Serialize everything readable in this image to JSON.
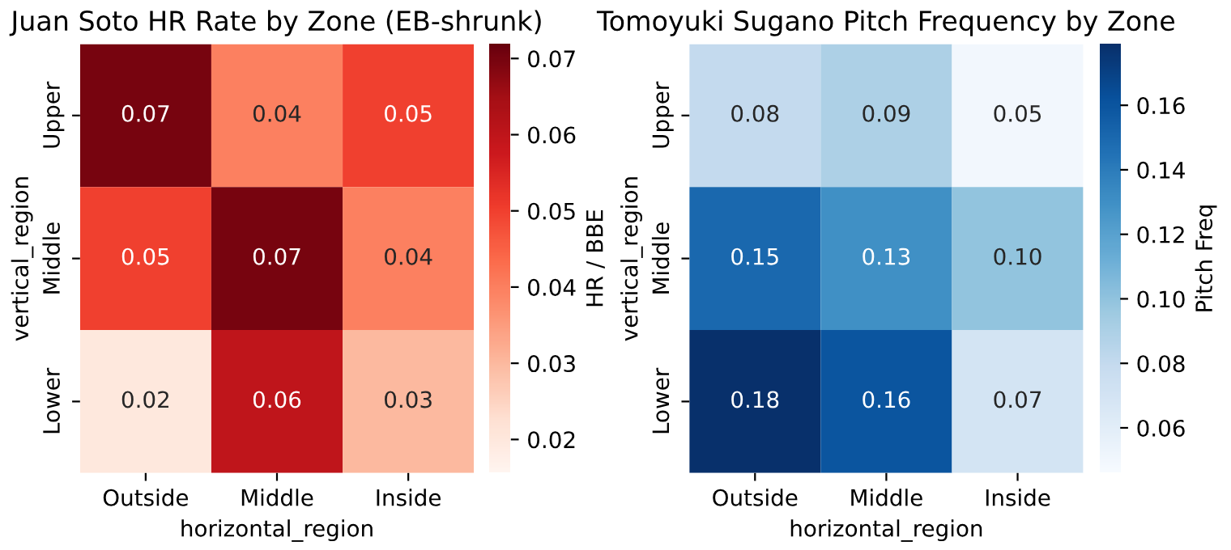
{
  "chart_data": [
    {
      "type": "heatmap",
      "title": "Juan Soto HR Rate by Zone (EB-shrunk)",
      "xlabel": "horizontal_region",
      "ylabel": "vertical_region",
      "clabel": "HR / BBE",
      "categories": [
        "Outside",
        "Middle",
        "Inside"
      ],
      "y_categories": [
        "Upper",
        "Middle",
        "Lower"
      ],
      "cells": [
        [
          0.07,
          0.04,
          0.05
        ],
        [
          0.05,
          0.07,
          0.04
        ],
        [
          0.02,
          0.06,
          0.03
        ]
      ],
      "cell_labels": [
        [
          "0.07",
          "0.04",
          "0.05"
        ],
        [
          "0.05",
          "0.07",
          "0.04"
        ],
        [
          "0.02",
          "0.06",
          "0.03"
        ]
      ],
      "clim": [
        0.0156,
        0.0719
      ],
      "cticks": [
        0.02,
        0.03,
        0.04,
        0.05,
        0.06,
        0.07
      ]
    },
    {
      "type": "heatmap",
      "title": "Tomoyuki Sugano Pitch Frequency by Zone",
      "xlabel": "horizontal_region",
      "ylabel": "vertical_region",
      "clabel": "Pitch Freq",
      "categories": [
        "Outside",
        "Middle",
        "Inside"
      ],
      "y_categories": [
        "Upper",
        "Middle",
        "Lower"
      ],
      "cells": [
        [
          0.08,
          0.09,
          0.05
        ],
        [
          0.15,
          0.13,
          0.1
        ],
        [
          0.18,
          0.16,
          0.07
        ]
      ],
      "cell_labels": [
        [
          "0.08",
          "0.09",
          "0.05"
        ],
        [
          "0.15",
          "0.13",
          "0.10"
        ],
        [
          "0.18",
          "0.16",
          "0.07"
        ]
      ],
      "clim": [
        0.046,
        0.179
      ],
      "cticks": [
        0.06,
        0.08,
        {
          "value": 0.1,
          "label": "0.10"
        },
        0.12,
        0.14,
        0.16
      ]
    }
  ]
}
